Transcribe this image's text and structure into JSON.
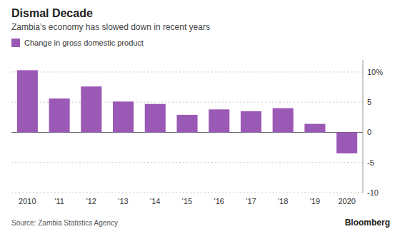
{
  "chart_data": {
    "type": "bar",
    "title": "Dismal Decade",
    "subtitle": "Zambia’s economy has slowed down in recent years",
    "annotations": [
      "Source:  Zambia Statistics Agency",
      "Bloomberg"
    ],
    "categories": [
      "2010",
      "'11",
      "'12",
      "'13",
      "'14",
      "'15",
      "'16",
      "'17",
      "'18",
      "'19",
      "2020"
    ],
    "series": [
      {
        "name": "Change in gross domestic product",
        "color": "#9b59b6",
        "values": [
          10.3,
          5.6,
          7.6,
          5.1,
          4.7,
          2.9,
          3.8,
          3.5,
          4.0,
          1.4,
          -3.5
        ]
      }
    ],
    "ylim": [
      -10,
      12
    ],
    "yticks": [
      -10,
      -5,
      0,
      5,
      {
        "value": 10,
        "label": "10%"
      }
    ],
    "grid": true,
    "legend": "top-left"
  }
}
